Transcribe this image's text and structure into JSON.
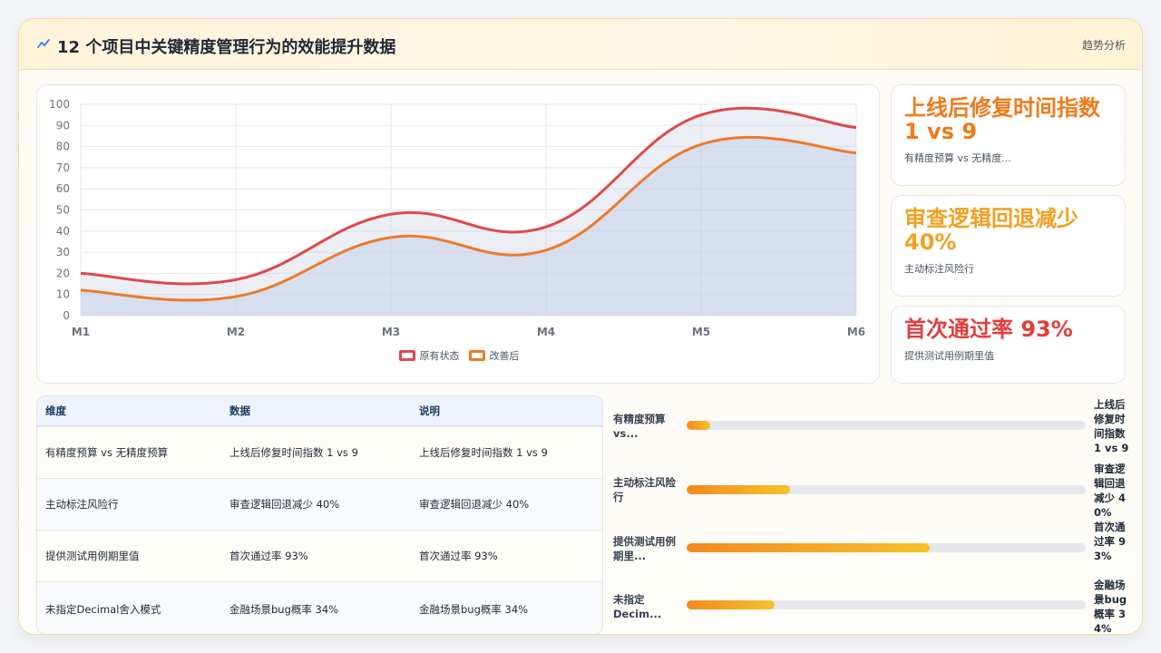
{
  "header": {
    "title": "12 个项目中关键精度管理行为的效能提升数据",
    "link_label": "趋势分析",
    "icon": "trend-line-icon"
  },
  "chart_data": {
    "type": "area",
    "categories": [
      "M1",
      "M2",
      "M3",
      "M4",
      "M5",
      "M6"
    ],
    "ylim": [
      0,
      100
    ],
    "yticks": [
      0,
      10,
      20,
      30,
      40,
      50,
      60,
      70,
      80,
      90,
      100
    ],
    "grid": true,
    "legend_position": "bottom",
    "series": [
      {
        "name": "原有状态",
        "values": [
          20,
          17,
          48,
          42,
          95,
          89
        ],
        "color": "#e04848"
      },
      {
        "name": "改善后",
        "values": [
          12,
          9,
          37,
          31,
          81,
          77
        ],
        "color": "#ec7a2c"
      }
    ]
  },
  "kpis": [
    {
      "value": "上线后修复时间指数 1 vs 9",
      "caption": "有精度预算 vs 无精度...",
      "color": "#f07a1a"
    },
    {
      "value": "审查逻辑回退减少 40%",
      "caption": "主动标注风险行",
      "color": "#f2a020"
    },
    {
      "value": "首次通过率 93%",
      "caption": "提供测试用例期里值",
      "color": "#e43d3d"
    }
  ],
  "table": {
    "columns": [
      "维度",
      "数据",
      "说明"
    ],
    "rows": [
      [
        "有精度预算 vs 无精度预算",
        "上线后修复时间指数 1 vs 9",
        "上线后修复时间指数 1 vs 9"
      ],
      [
        "主动标注风险行",
        "审查逻辑回退减少 40%",
        "审查逻辑回退减少 40%"
      ],
      [
        "提供测试用例期里值",
        "首次通过率 93%",
        "首次通过率 93%"
      ],
      [
        "未指定Decimal舍入模式",
        "金融场景bug概率 34%",
        "金融场景bug概率 34%"
      ]
    ]
  },
  "bars": [
    {
      "label": "有精度预算 vs...",
      "value_text": "上线后修复时间指数 1 vs 9",
      "fill": 0.06
    },
    {
      "label": "主动标注风险行",
      "value_text": "审查逻辑回退减少 40%",
      "fill": 0.26
    },
    {
      "label": "提供测试用例期里...",
      "value_text": "首次通过率 93%",
      "fill": 0.61
    },
    {
      "label": "未指定 Decim...",
      "value_text": "金融场景bug概率 34%",
      "fill": 0.22
    }
  ]
}
